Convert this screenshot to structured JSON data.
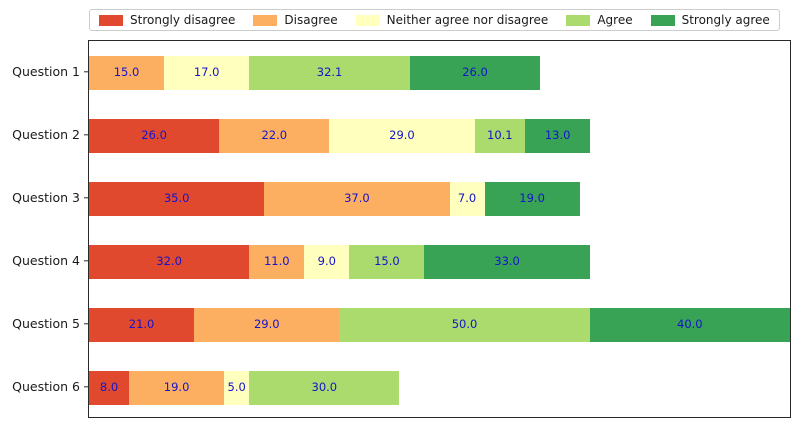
{
  "chart_data": {
    "type": "bar",
    "orientation": "horizontal",
    "stacked": true,
    "title": "",
    "xlabel": "",
    "ylabel": "",
    "grid": false,
    "legend_position": "top",
    "xlim": [
      0,
      140
    ],
    "categories": [
      "Question 1",
      "Question 2",
      "Question 3",
      "Question 4",
      "Question 5",
      "Question 6"
    ],
    "series": [
      {
        "name": "Strongly disagree",
        "color": "#e1492f",
        "values": [
          0,
          26.0,
          35.0,
          32.0,
          21.0,
          8.0
        ]
      },
      {
        "name": "Disagree",
        "color": "#fcae61",
        "values": [
          15.0,
          22.0,
          37.0,
          11.0,
          29.0,
          19.0
        ]
      },
      {
        "name": "Neither agree nor disagree",
        "color": "#ffffbe",
        "values": [
          17.0,
          29.0,
          7.0,
          9.0,
          0,
          5.0
        ]
      },
      {
        "name": "Agree",
        "color": "#abdb6d",
        "values": [
          32.1,
          10.1,
          0,
          15.0,
          50.0,
          30.0
        ]
      },
      {
        "name": "Strongly agree",
        "color": "#39a355",
        "values": [
          26.0,
          13.0,
          19.0,
          33.0,
          40.0,
          0
        ]
      }
    ],
    "value_label_color": "#1414cc",
    "value_label_decimals": 1
  }
}
